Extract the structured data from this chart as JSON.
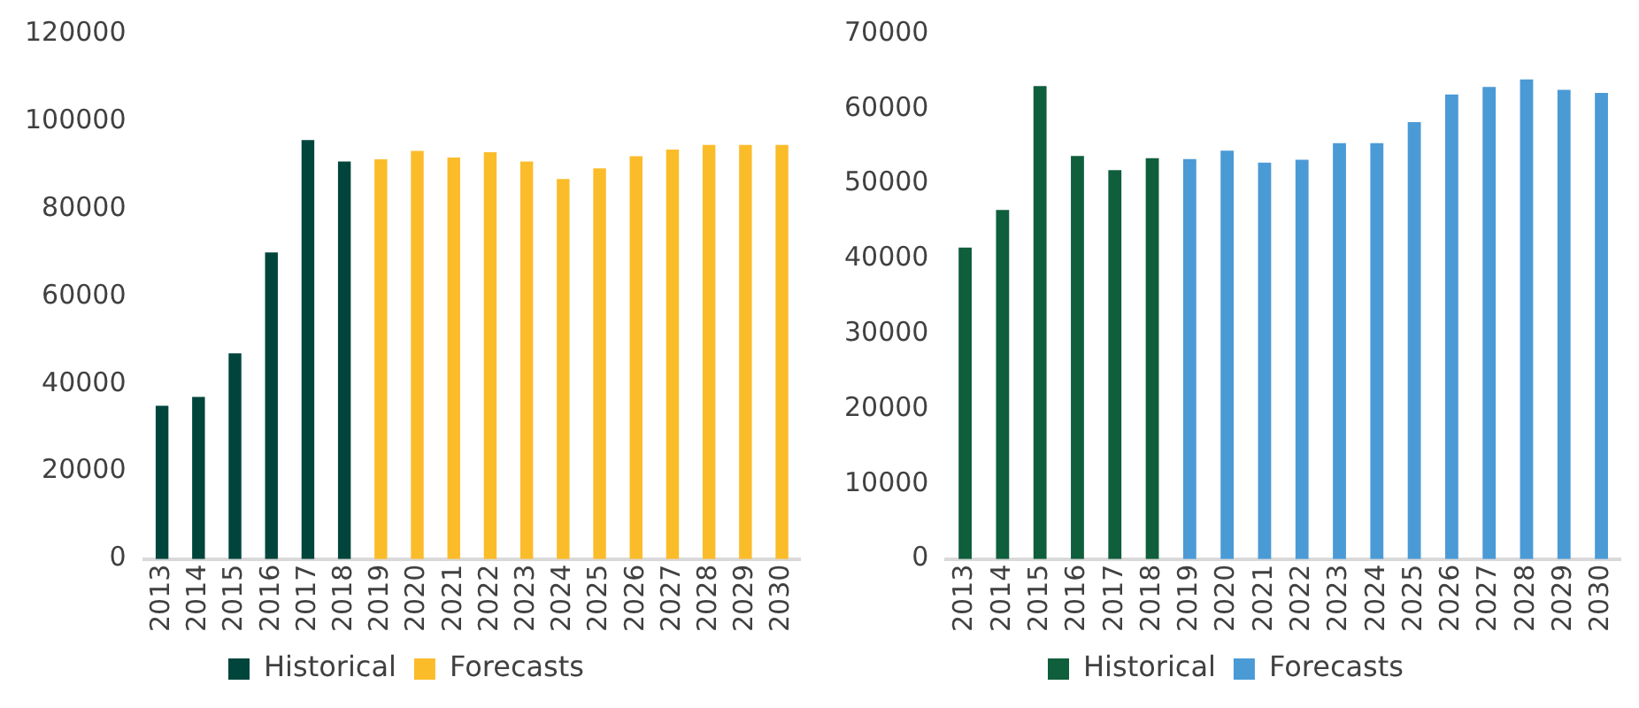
{
  "chart_data": [
    {
      "type": "bar",
      "categories": [
        "2013",
        "2014",
        "2015",
        "2016",
        "2017",
        "2018",
        "2019",
        "2020",
        "2021",
        "2022",
        "2023",
        "2024",
        "2025",
        "2026",
        "2027",
        "2028",
        "2029",
        "2030"
      ],
      "series": [
        {
          "name": "Historical",
          "color": "#00453c",
          "values": [
            35000,
            37000,
            47000,
            70000,
            95700,
            90800,
            null,
            null,
            null,
            null,
            null,
            null,
            null,
            null,
            null,
            null,
            null,
            null
          ]
        },
        {
          "name": "Forecasts",
          "color": "#fbbc2a",
          "values": [
            null,
            null,
            null,
            null,
            null,
            null,
            91300,
            93200,
            91700,
            92900,
            90800,
            86800,
            89200,
            92000,
            93500,
            94600,
            94600,
            94600
          ]
        }
      ],
      "ylim": [
        0,
        120000
      ],
      "yticks": [
        0,
        20000,
        40000,
        60000,
        80000,
        100000,
        120000
      ],
      "grid": false,
      "legend": "bottom"
    },
    {
      "type": "bar",
      "categories": [
        "2013",
        "2014",
        "2015",
        "2016",
        "2017",
        "2018",
        "2019",
        "2020",
        "2021",
        "2022",
        "2023",
        "2024",
        "2025",
        "2026",
        "2027",
        "2028",
        "2029",
        "2030"
      ],
      "series": [
        {
          "name": "Historical",
          "color": "#0f5e3c",
          "values": [
            41500,
            46500,
            63000,
            53700,
            51800,
            53400,
            null,
            null,
            null,
            null,
            null,
            null,
            null,
            null,
            null,
            null,
            null,
            null
          ]
        },
        {
          "name": "Forecasts",
          "color": "#4a9ad6",
          "values": [
            null,
            null,
            null,
            null,
            null,
            null,
            53300,
            54400,
            52800,
            53200,
            55400,
            55400,
            58200,
            61900,
            62900,
            63900,
            62500,
            62100
          ]
        }
      ],
      "ylim": [
        0,
        70000
      ],
      "yticks": [
        0,
        10000,
        20000,
        30000,
        40000,
        50000,
        60000,
        70000
      ],
      "grid": false,
      "legend": "bottom"
    }
  ]
}
